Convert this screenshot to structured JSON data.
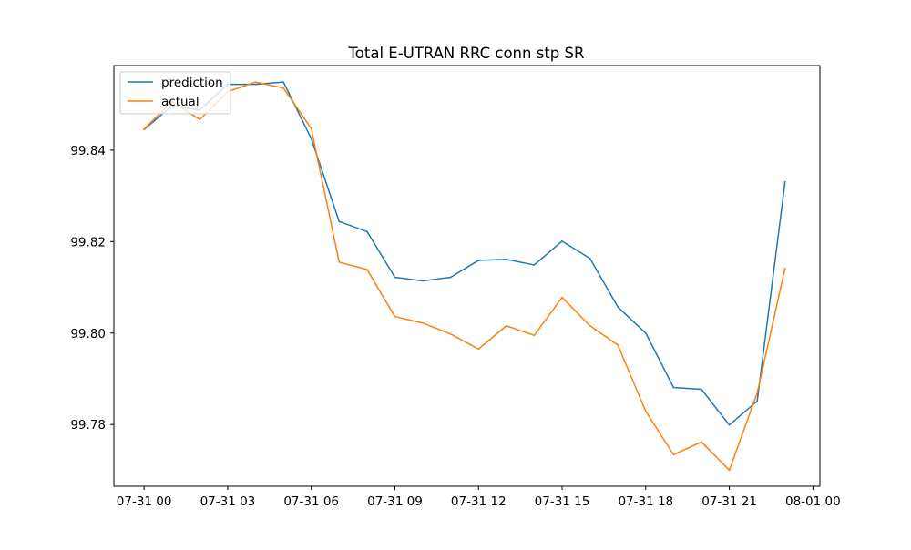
{
  "chart_data": {
    "type": "line",
    "title": "Total E-UTRAN RRC conn stp SR",
    "xlabel": "",
    "ylabel": "",
    "x": [
      "07-31 00:00",
      "07-31 01:00",
      "07-31 02:00",
      "07-31 03:00",
      "07-31 04:00",
      "07-31 05:00",
      "07-31 06:00",
      "07-31 07:00",
      "07-31 08:00",
      "07-31 09:00",
      "07-31 10:00",
      "07-31 11:00",
      "07-31 12:00",
      "07-31 13:00",
      "07-31 14:00",
      "07-31 15:00",
      "07-31 16:00",
      "07-31 17:00",
      "07-31 18:00",
      "07-31 19:00",
      "07-31 20:00",
      "07-31 21:00",
      "07-31 22:00",
      "07-31 23:00"
    ],
    "xlim": [
      "07-30 22:55",
      "08-01 00:15"
    ],
    "x_ticks": [
      "07-31 00",
      "07-31 03",
      "07-31 06",
      "07-31 09",
      "07-31 12",
      "07-31 15",
      "07-31 18",
      "07-31 21",
      "08-01 00"
    ],
    "ylim": [
      99.7665,
      99.8585
    ],
    "y_ticks": [
      "99.78",
      "99.80",
      "99.82",
      "99.84"
    ],
    "y_tick_values": [
      99.78,
      99.8,
      99.82,
      99.84
    ],
    "grid": false,
    "legend_position": "top-left",
    "series": [
      {
        "name": "prediction",
        "color": "#1f77b4",
        "values": [
          99.8445,
          99.8497,
          99.8488,
          99.8544,
          99.8544,
          99.8549,
          99.8425,
          99.8244,
          99.8222,
          99.8122,
          99.8114,
          99.8122,
          99.8159,
          99.8161,
          99.8149,
          99.8201,
          99.8163,
          99.8057,
          99.8,
          99.7881,
          99.7877,
          99.7799,
          99.7851,
          99.8331
        ]
      },
      {
        "name": "actual",
        "color": "#ff7f0e",
        "values": [
          99.8446,
          99.8506,
          99.8467,
          99.8528,
          99.8549,
          99.8536,
          99.8447,
          99.8155,
          99.8139,
          99.8036,
          99.8022,
          99.7998,
          99.7965,
          99.8016,
          99.7995,
          99.8078,
          99.8016,
          99.7974,
          99.7829,
          99.7734,
          99.7762,
          99.77,
          99.7869,
          99.8142
        ]
      }
    ]
  }
}
